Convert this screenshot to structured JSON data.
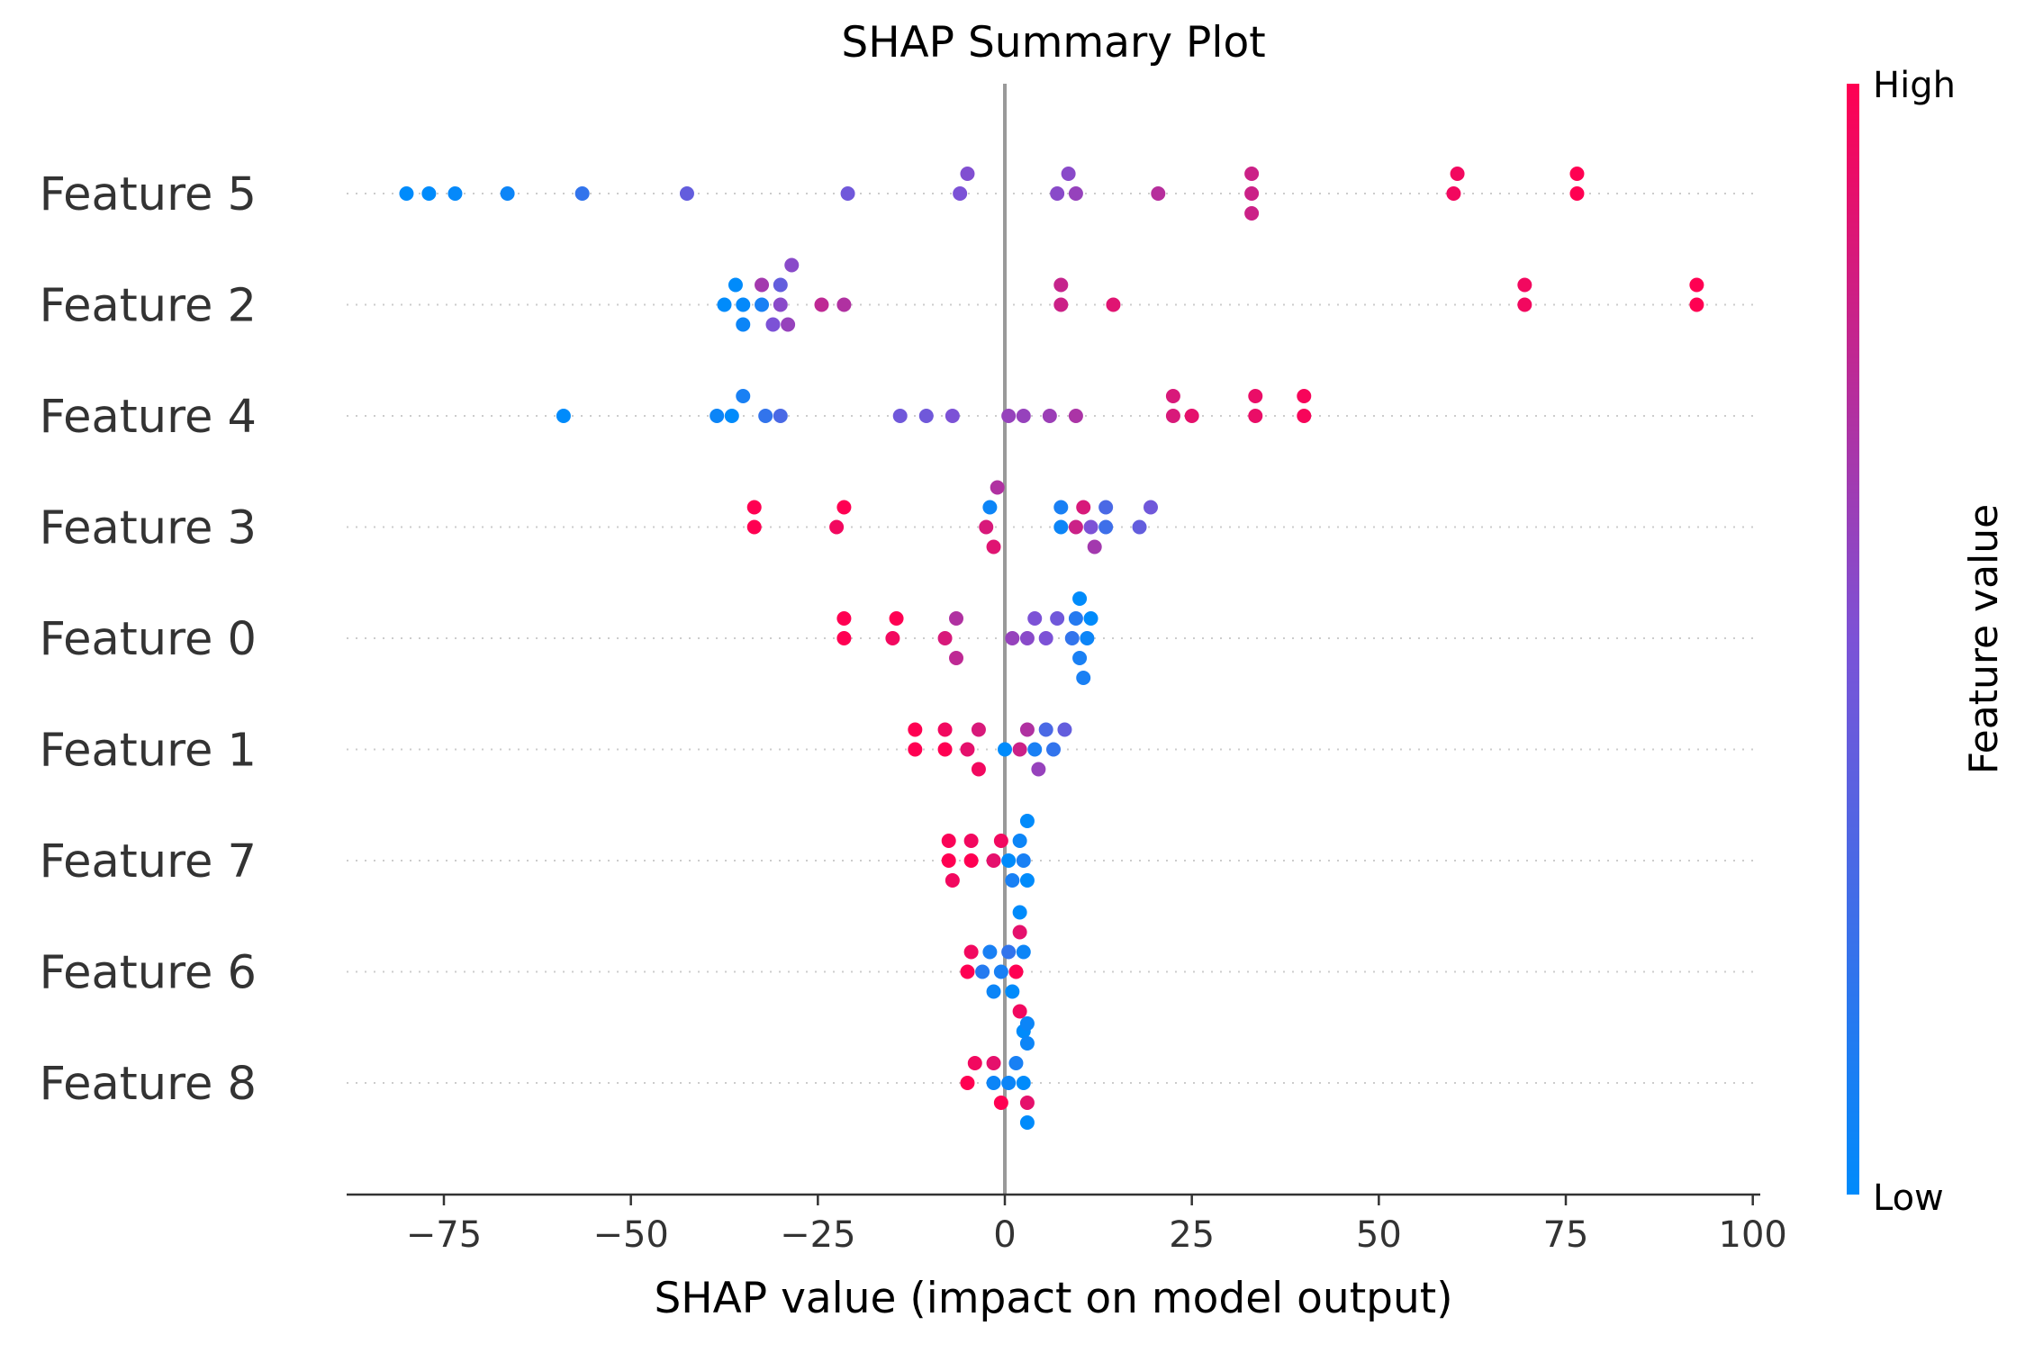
{
  "chart_data": {
    "type": "scatter",
    "subtype": "shap-beeswarm",
    "title": "SHAP Summary Plot",
    "xlabel": "SHAP value (impact on model output)",
    "ylabel": "",
    "xlim": [
      -88,
      101
    ],
    "x_ticks": [
      -75,
      -50,
      -25,
      0,
      25,
      50,
      75,
      100
    ],
    "x_tick_labels": [
      "−75",
      "−50",
      "−25",
      "0",
      "25",
      "50",
      "75",
      "100"
    ],
    "zero_line": true,
    "grid": "horizontal-dotted-per-feature",
    "legend": "none",
    "colorbar": {
      "label": "Feature value",
      "high_label": "High",
      "low_label": "Low",
      "low_color": "#008bfb",
      "mid_color": "#7c52d6",
      "high_color": "#ff0052",
      "placement": "right"
    },
    "colors": {
      "axis": "#333333",
      "zero_line": "#999999",
      "grid": "#cccccc",
      "tick_text": "#333333"
    },
    "features": [
      {
        "name": "Feature 5",
        "points": [
          {
            "x": -80,
            "v": 0.0
          },
          {
            "x": -77,
            "v": 0.0
          },
          {
            "x": -73.5,
            "v": 0.02
          },
          {
            "x": -66.5,
            "v": 0.05
          },
          {
            "x": -56.5,
            "v": 0.2
          },
          {
            "x": -42.5,
            "v": 0.4
          },
          {
            "x": -21,
            "v": 0.45
          },
          {
            "x": -6,
            "v": 0.5
          },
          {
            "x": -5,
            "v": 0.52
          },
          {
            "x": 7,
            "v": 0.55
          },
          {
            "x": 8.5,
            "v": 0.55
          },
          {
            "x": 9.5,
            "v": 0.6
          },
          {
            "x": 20.5,
            "v": 0.72
          },
          {
            "x": 33,
            "v": 0.8
          },
          {
            "x": 33,
            "v": 0.8
          },
          {
            "x": 33,
            "v": 0.8
          },
          {
            "x": 60,
            "v": 0.95
          },
          {
            "x": 60.5,
            "v": 0.95
          },
          {
            "x": 76.5,
            "v": 1.0
          },
          {
            "x": 76.5,
            "v": 1.0
          }
        ]
      },
      {
        "name": "Feature 2",
        "points": [
          {
            "x": -37.5,
            "v": 0.0
          },
          {
            "x": -36,
            "v": 0.0
          },
          {
            "x": -35,
            "v": 0.02
          },
          {
            "x": -35,
            "v": 0.05
          },
          {
            "x": -32.5,
            "v": 0.1
          },
          {
            "x": -32.5,
            "v": 0.65
          },
          {
            "x": -31,
            "v": 0.5
          },
          {
            "x": -30,
            "v": 0.55
          },
          {
            "x": -30,
            "v": 0.4
          },
          {
            "x": -29,
            "v": 0.6
          },
          {
            "x": -28.5,
            "v": 0.55
          },
          {
            "x": -24.5,
            "v": 0.75
          },
          {
            "x": -21.5,
            "v": 0.7
          },
          {
            "x": 7.5,
            "v": 0.8
          },
          {
            "x": 7.5,
            "v": 0.78
          },
          {
            "x": 14.5,
            "v": 0.88
          },
          {
            "x": 69.5,
            "v": 0.95
          },
          {
            "x": 69.5,
            "v": 0.95
          },
          {
            "x": 92.5,
            "v": 1.0
          },
          {
            "x": 92.5,
            "v": 1.0
          }
        ]
      },
      {
        "name": "Feature 4",
        "points": [
          {
            "x": -59,
            "v": 0.0
          },
          {
            "x": -38.5,
            "v": 0.05
          },
          {
            "x": -36.5,
            "v": 0.0
          },
          {
            "x": -35,
            "v": 0.1
          },
          {
            "x": -32,
            "v": 0.2
          },
          {
            "x": -30,
            "v": 0.3
          },
          {
            "x": -14,
            "v": 0.45
          },
          {
            "x": -10.5,
            "v": 0.45
          },
          {
            "x": -7,
            "v": 0.5
          },
          {
            "x": 0.5,
            "v": 0.6
          },
          {
            "x": 2.5,
            "v": 0.6
          },
          {
            "x": 6,
            "v": 0.62
          },
          {
            "x": 9.5,
            "v": 0.68
          },
          {
            "x": 22.5,
            "v": 0.85
          },
          {
            "x": 22.5,
            "v": 0.85
          },
          {
            "x": 25,
            "v": 0.9
          },
          {
            "x": 33.5,
            "v": 0.92
          },
          {
            "x": 33.5,
            "v": 0.92
          },
          {
            "x": 40,
            "v": 0.97
          },
          {
            "x": 40,
            "v": 0.97
          }
        ]
      },
      {
        "name": "Feature 3",
        "points": [
          {
            "x": -33.5,
            "v": 1.0
          },
          {
            "x": -33.5,
            "v": 1.0
          },
          {
            "x": -22.5,
            "v": 0.95
          },
          {
            "x": -21.5,
            "v": 1.0
          },
          {
            "x": -2.5,
            "v": 0.85
          },
          {
            "x": -1.5,
            "v": 0.88
          },
          {
            "x": -2,
            "v": 0.05
          },
          {
            "x": -1,
            "v": 0.7
          },
          {
            "x": 7.5,
            "v": 0.05
          },
          {
            "x": 7.5,
            "v": 0.1
          },
          {
            "x": 9.5,
            "v": 0.8
          },
          {
            "x": 10.5,
            "v": 0.85
          },
          {
            "x": 11.5,
            "v": 0.5
          },
          {
            "x": 12,
            "v": 0.65
          },
          {
            "x": 13.5,
            "v": 0.25
          },
          {
            "x": 13.5,
            "v": 0.3
          },
          {
            "x": 18,
            "v": 0.4
          },
          {
            "x": 19.5,
            "v": 0.45
          }
        ]
      },
      {
        "name": "Feature 0",
        "points": [
          {
            "x": -21.5,
            "v": 1.0
          },
          {
            "x": -21.5,
            "v": 1.0
          },
          {
            "x": -15,
            "v": 0.95
          },
          {
            "x": -14.5,
            "v": 1.0
          },
          {
            "x": -8,
            "v": 0.85
          },
          {
            "x": -6.5,
            "v": 0.7
          },
          {
            "x": -6.5,
            "v": 0.75
          },
          {
            "x": 1,
            "v": 0.6
          },
          {
            "x": 3,
            "v": 0.55
          },
          {
            "x": 4,
            "v": 0.5
          },
          {
            "x": 5.5,
            "v": 0.5
          },
          {
            "x": 7,
            "v": 0.45
          },
          {
            "x": 9,
            "v": 0.2
          },
          {
            "x": 9.5,
            "v": 0.15
          },
          {
            "x": 10,
            "v": 0.1
          },
          {
            "x": 10.5,
            "v": 0.1
          },
          {
            "x": 11,
            "v": 0.05
          },
          {
            "x": 11.5,
            "v": 0.0
          },
          {
            "x": 10,
            "v": 0.0
          }
        ]
      },
      {
        "name": "Feature 1",
        "points": [
          {
            "x": -12,
            "v": 1.0
          },
          {
            "x": -12,
            "v": 1.0
          },
          {
            "x": -8,
            "v": 1.0
          },
          {
            "x": -8,
            "v": 0.95
          },
          {
            "x": -5,
            "v": 0.9
          },
          {
            "x": -3.5,
            "v": 0.85
          },
          {
            "x": -3.5,
            "v": 0.95
          },
          {
            "x": 0,
            "v": 0.0
          },
          {
            "x": 2,
            "v": 0.8
          },
          {
            "x": 3,
            "v": 0.7
          },
          {
            "x": 4,
            "v": 0.1
          },
          {
            "x": 4.5,
            "v": 0.6
          },
          {
            "x": 5.5,
            "v": 0.3
          },
          {
            "x": 6.5,
            "v": 0.2
          },
          {
            "x": 8,
            "v": 0.4
          }
        ]
      },
      {
        "name": "Feature 7",
        "points": [
          {
            "x": -7.5,
            "v": 1.0
          },
          {
            "x": -7,
            "v": 0.95
          },
          {
            "x": -7.5,
            "v": 0.98
          },
          {
            "x": -4.5,
            "v": 1.0
          },
          {
            "x": -4.5,
            "v": 0.95
          },
          {
            "x": -1.5,
            "v": 0.9
          },
          {
            "x": -0.5,
            "v": 0.95
          },
          {
            "x": 0.5,
            "v": 0.0
          },
          {
            "x": 1,
            "v": 0.1
          },
          {
            "x": 2,
            "v": 0.05
          },
          {
            "x": 3,
            "v": 0.0
          },
          {
            "x": 2.5,
            "v": 0.1
          },
          {
            "x": 3,
            "v": 0.0
          }
        ]
      },
      {
        "name": "Feature 6",
        "points": [
          {
            "x": -5,
            "v": 1.0
          },
          {
            "x": -4.5,
            "v": 0.95
          },
          {
            "x": -3,
            "v": 0.15
          },
          {
            "x": -2,
            "v": 0.1
          },
          {
            "x": -1.5,
            "v": 0.05
          },
          {
            "x": -0.5,
            "v": 0.1
          },
          {
            "x": 0.5,
            "v": 0.2
          },
          {
            "x": 1,
            "v": 0.0
          },
          {
            "x": 1.5,
            "v": 1.0
          },
          {
            "x": 2,
            "v": 0.9
          },
          {
            "x": 2.5,
            "v": 0.05
          },
          {
            "x": 2,
            "v": 0.95
          },
          {
            "x": 2,
            "v": 0.0
          },
          {
            "x": 2.5,
            "v": 0.0
          }
        ]
      },
      {
        "name": "Feature 8",
        "points": [
          {
            "x": -5,
            "v": 1.0
          },
          {
            "x": -4,
            "v": 0.95
          },
          {
            "x": -1.5,
            "v": 0.05
          },
          {
            "x": -1.5,
            "v": 0.9
          },
          {
            "x": -0.5,
            "v": 1.0
          },
          {
            "x": 0.5,
            "v": 0.05
          },
          {
            "x": 1.5,
            "v": 0.1
          },
          {
            "x": 2.5,
            "v": 0.0
          },
          {
            "x": 3,
            "v": 0.9
          },
          {
            "x": 3,
            "v": 0.05
          },
          {
            "x": 3,
            "v": 0.0
          },
          {
            "x": 3,
            "v": 0.05
          }
        ]
      }
    ]
  }
}
